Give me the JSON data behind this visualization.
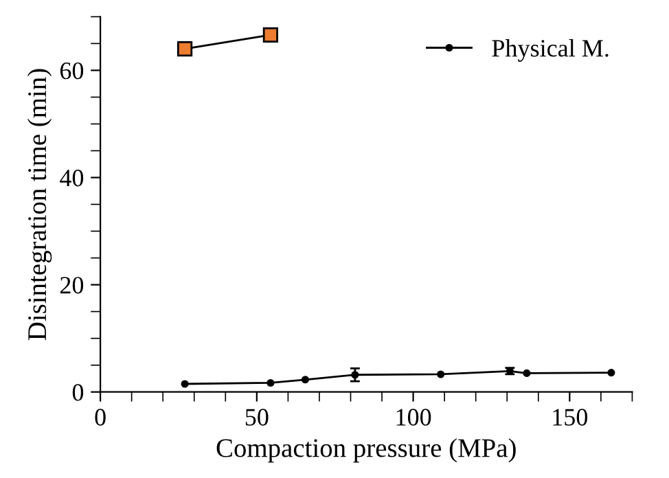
{
  "chart_data": {
    "type": "line",
    "xlabel": "Compaction pressure (MPa)",
    "ylabel": "Disintegration time (min)",
    "xlim": [
      0,
      170
    ],
    "xticks": [
      0,
      50,
      100,
      150
    ],
    "ylim": [
      0,
      70
    ],
    "yticks": [
      0,
      20,
      40,
      60
    ],
    "legend": "top right",
    "grid": false,
    "line_style": "solid",
    "series": [
      {
        "name": "Physical M.",
        "color": "#000000",
        "marker": "circle",
        "x": [
          27,
          54.4,
          65.5,
          81.4,
          108.8,
          130.9,
          136.3,
          163.3
        ],
        "values": [
          1.5,
          1.7,
          2.3,
          3.2,
          3.3,
          3.9,
          3.5,
          3.6
        ],
        "errors": [
          null,
          null,
          null,
          1.2,
          null,
          0.6,
          null,
          null
        ]
      },
      {
        "color": "#ed7d31",
        "marker": "square",
        "x": [
          27,
          54.4
        ],
        "values": [
          64.0,
          66.6
        ]
      }
    ]
  }
}
